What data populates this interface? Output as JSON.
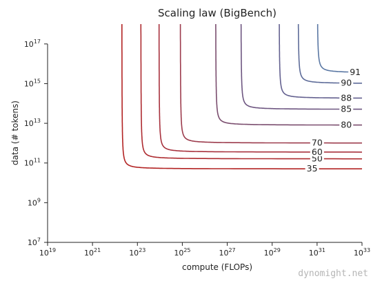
{
  "watermark": "dynomight.net",
  "chart_data": {
    "type": "line",
    "title": "Scaling law (BigBench)",
    "xlabel": "compute (FLOPs)",
    "ylabel": "data (# tokens)",
    "x_scale": "log",
    "y_scale": "log",
    "xlim": [
      1e+19,
      1e+33
    ],
    "ylim": [
      10000000.0,
      1e+18
    ],
    "x_ticks": [
      {
        "value": 1e+19,
        "base": "10",
        "exp": "19"
      },
      {
        "value": 1e+21,
        "base": "10",
        "exp": "21"
      },
      {
        "value": 1e+23,
        "base": "10",
        "exp": "23"
      },
      {
        "value": 1e+25,
        "base": "10",
        "exp": "25"
      },
      {
        "value": 1e+27,
        "base": "10",
        "exp": "27"
      },
      {
        "value": 1e+29,
        "base": "10",
        "exp": "29"
      },
      {
        "value": 1e+31,
        "base": "10",
        "exp": "31"
      },
      {
        "value": 1e+33,
        "base": "10",
        "exp": "33"
      }
    ],
    "y_ticks": [
      {
        "value": 10000000.0,
        "base": "10",
        "exp": "7"
      },
      {
        "value": 1000000000.0,
        "base": "10",
        "exp": "9"
      },
      {
        "value": 100000000000.0,
        "base": "10",
        "exp": "11"
      },
      {
        "value": 10000000000000.0,
        "base": "10",
        "exp": "13"
      },
      {
        "value": 1000000000000000.0,
        "base": "10",
        "exp": "15"
      },
      {
        "value": 1e+17,
        "base": "10",
        "exp": "17"
      }
    ],
    "grid": false,
    "series": [
      {
        "label": "35",
        "color": "#b22222",
        "x_min": 2e+22,
        "y_min": 50000000000.0,
        "x_label": 6e+30
      },
      {
        "label": "50",
        "color": "#ad2a2f",
        "x_min": 1.4e+23,
        "y_min": 160000000000.0,
        "x_label": 1e+31
      },
      {
        "label": "60",
        "color": "#a7303c",
        "x_min": 9e+23,
        "y_min": 350000000000.0,
        "x_label": 1e+31
      },
      {
        "label": "70",
        "color": "#9c3b4c",
        "x_min": 8e+24,
        "y_min": 1000000000000.0,
        "x_label": 1e+31
      },
      {
        "label": "80",
        "color": "#7a4d6e",
        "x_min": 3e+26,
        "y_min": 8000000000000.0,
        "x_label": 2e+32
      },
      {
        "label": "85",
        "color": "#6d5580",
        "x_min": 4e+27,
        "y_min": 50000000000000.0,
        "x_label": 2e+32
      },
      {
        "label": "88",
        "color": "#63608f",
        "x_min": 2e+29,
        "y_min": 180000000000000.0,
        "x_label": 2e+32
      },
      {
        "label": "90",
        "color": "#5d6b98",
        "x_min": 1.4e+30,
        "y_min": 1000000000000000.0,
        "x_label": 2e+32
      },
      {
        "label": "91",
        "color": "#5a77a3",
        "x_min": 1e+31,
        "y_min": 3500000000000000.0,
        "x_label": 5e+32
      }
    ]
  }
}
